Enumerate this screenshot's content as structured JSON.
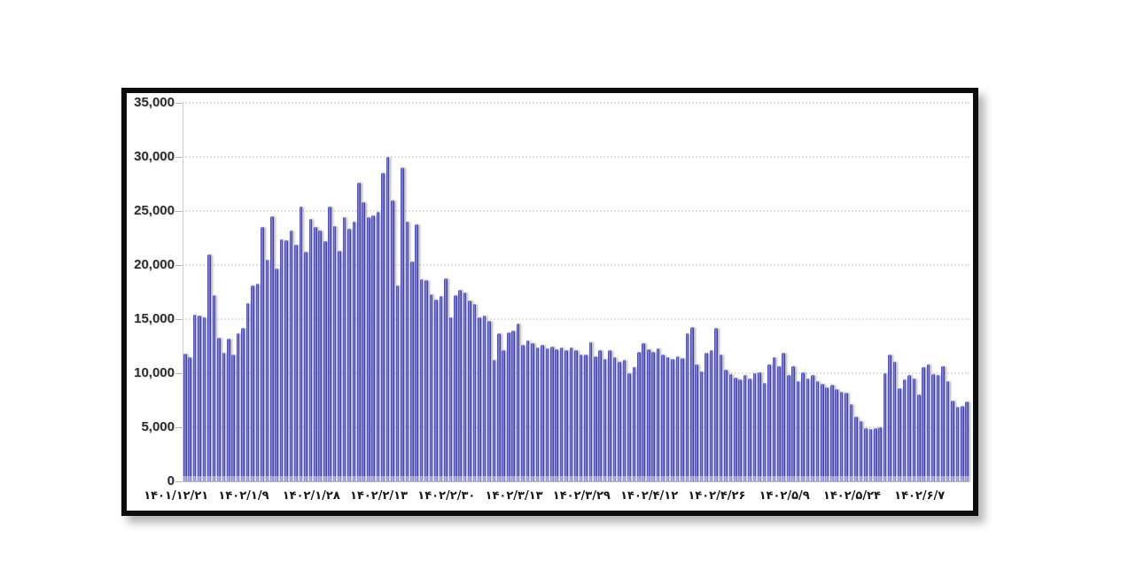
{
  "chart_data": {
    "type": "bar",
    "title": "",
    "xlabel": "",
    "ylabel": "",
    "legend": "none",
    "grid": "horizontal-dashed",
    "ylim": [
      0,
      35000
    ],
    "y_tick_step": 5000,
    "y_ticks": [
      {
        "value": 35000,
        "label": "35,000"
      },
      {
        "value": 30000,
        "label": "30,000"
      },
      {
        "value": 25000,
        "label": "25,000"
      },
      {
        "value": 20000,
        "label": "20,000"
      },
      {
        "value": 15000,
        "label": "15,000"
      },
      {
        "value": 10000,
        "label": "10,000"
      },
      {
        "value": 5000,
        "label": "5,000"
      },
      {
        "value": 0,
        "label": "0"
      }
    ],
    "x_tick_labels": [
      "۱۴۰۱/۱۲/۲۱",
      "۱۴۰۲/۱/۹",
      "۱۴۰۲/۱/۲۸",
      "۱۴۰۲/۲/۱۳",
      "۱۴۰۲/۲/۳۰",
      "۱۴۰۲/۳/۱۳",
      "۱۴۰۲/۳/۲۹",
      "۱۴۰۲/۴/۱۲",
      "۱۴۰۲/۴/۲۶",
      "۱۴۰۲/۵/۹",
      "۱۴۰۲/۵/۲۴",
      "۱۴۰۲/۶/۷"
    ],
    "x_tick_every": 14,
    "bar_color": "#4747bd",
    "bar_highlight": "#9a9ae2",
    "bar_edge": "#3030a2",
    "frame_border_color": "#0d0d0d",
    "plot_background": "#fefefe",
    "gridline_color": "#e2e2e2",
    "values": [
      11800,
      11500,
      15400,
      15300,
      15200,
      21000,
      17200,
      13300,
      11900,
      13200,
      11700,
      13700,
      14200,
      16500,
      18100,
      18300,
      23500,
      20500,
      24500,
      19700,
      22400,
      22300,
      23200,
      21900,
      25400,
      21200,
      24300,
      23500,
      23200,
      22200,
      25400,
      23600,
      21300,
      24400,
      23400,
      24000,
      27600,
      25800,
      24400,
      24600,
      24900,
      28500,
      30000,
      26000,
      18100,
      29000,
      24000,
      20300,
      23800,
      18700,
      18600,
      17300,
      16800,
      17100,
      18800,
      15200,
      17200,
      17700,
      17500,
      16700,
      16400,
      15200,
      15300,
      14800,
      11200,
      13700,
      12100,
      13800,
      13900,
      14600,
      12600,
      13000,
      12800,
      12400,
      12600,
      12300,
      12500,
      12200,
      12400,
      12100,
      12400,
      12100,
      11700,
      11700,
      12900,
      11600,
      12100,
      11300,
      12100,
      11500,
      11100,
      11200,
      10000,
      10600,
      12000,
      12800,
      12200,
      12000,
      12300,
      11700,
      11500,
      11300,
      11600,
      11400,
      13700,
      14300,
      10800,
      10200,
      11900,
      12100,
      14200,
      11700,
      10300,
      9900,
      9600,
      9400,
      9800,
      9500,
      10000,
      10100,
      9100,
      10800,
      11500,
      10700,
      11900,
      9800,
      10700,
      9300,
      10100,
      9500,
      9800,
      9300,
      9000,
      8700,
      8900,
      8500,
      8300,
      8200,
      7100,
      6000,
      5600,
      4900,
      4800,
      4900,
      5000,
      10000,
      11700,
      11100,
      8600,
      9400,
      9800,
      9500,
      8000,
      10600,
      10800,
      9900,
      9800,
      10700,
      9300,
      7500,
      6900,
      7000,
      7400
    ]
  }
}
